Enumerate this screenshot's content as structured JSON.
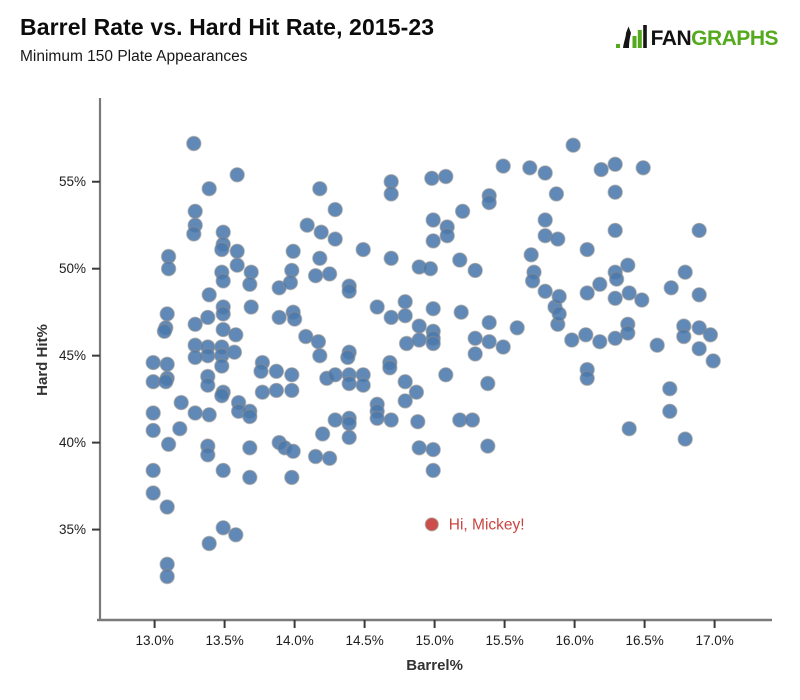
{
  "header": {
    "title": "Barrel Rate vs. Hard Hit Rate, 2015-23",
    "subtitle": "Minimum 150 Plate Appearances",
    "logo": {
      "fan": "FAN",
      "graphs": "GRAPHS",
      "fan_color": "#121212",
      "graphs_color": "#54aa1c"
    }
  },
  "chart_data": {
    "type": "scatter",
    "title": "Barrel Rate vs. Hard Hit Rate, 2015-23",
    "subtitle": "Minimum 150 Plate Appearances",
    "xlabel": "Barrel%",
    "ylabel": "Hard Hit%",
    "x_tick_labels": [
      "13.0%",
      "13.5%",
      "14.0%",
      "14.5%",
      "15.0%",
      "15.5%",
      "16.0%",
      "16.5%",
      "17.0%"
    ],
    "x_tick_values": [
      13.0,
      13.5,
      14.0,
      14.5,
      15.0,
      15.5,
      16.0,
      16.5,
      17.0
    ],
    "y_tick_labels": [
      "35%",
      "40%",
      "45%",
      "50%",
      "55%"
    ],
    "y_tick_values": [
      35,
      40,
      45,
      50,
      55
    ],
    "xlim": [
      12.61,
      17.41
    ],
    "ylim": [
      29.8,
      59.7
    ],
    "grid": false,
    "axis_color": "#7a7a7a",
    "tick_text_color": "#1c1c1c",
    "axis_label_color": "#333333",
    "series": [
      {
        "name": "qualified-hitters",
        "color": "#4a79ad",
        "points": [
          [
            13.28,
            57.2
          ],
          [
            13.59,
            55.4
          ],
          [
            13.39,
            54.6
          ],
          [
            13.29,
            53.3
          ],
          [
            13.29,
            52.5
          ],
          [
            13.28,
            52.0
          ],
          [
            13.49,
            52.1
          ],
          [
            13.49,
            51.4
          ],
          [
            13.48,
            51.1
          ],
          [
            13.59,
            51.0
          ],
          [
            13.59,
            50.2
          ],
          [
            13.1,
            50.7
          ],
          [
            13.1,
            50.0
          ],
          [
            14.18,
            54.6
          ],
          [
            14.09,
            52.5
          ],
          [
            14.19,
            52.1
          ],
          [
            13.99,
            51.0
          ],
          [
            14.18,
            50.6
          ],
          [
            13.98,
            49.9
          ],
          [
            13.69,
            49.8
          ],
          [
            15.49,
            55.9
          ],
          [
            15.68,
            55.8
          ],
          [
            15.79,
            55.5
          ],
          [
            14.98,
            55.2
          ],
          [
            15.08,
            55.3
          ],
          [
            14.69,
            55.0
          ],
          [
            14.69,
            54.3
          ],
          [
            15.39,
            54.2
          ],
          [
            15.39,
            53.8
          ],
          [
            14.29,
            53.4
          ],
          [
            15.2,
            53.3
          ],
          [
            14.99,
            52.8
          ],
          [
            15.09,
            52.4
          ],
          [
            15.09,
            51.9
          ],
          [
            14.29,
            51.7
          ],
          [
            14.99,
            51.6
          ],
          [
            14.49,
            51.1
          ],
          [
            15.79,
            52.8
          ],
          [
            15.79,
            51.9
          ],
          [
            15.87,
            54.3
          ],
          [
            15.69,
            50.8
          ],
          [
            14.69,
            50.6
          ],
          [
            15.18,
            50.5
          ],
          [
            14.89,
            50.1
          ],
          [
            14.97,
            50.0
          ],
          [
            15.29,
            49.9
          ],
          [
            15.71,
            49.8
          ],
          [
            15.7,
            49.3
          ],
          [
            15.99,
            57.1
          ],
          [
            16.19,
            55.7
          ],
          [
            16.29,
            56.0
          ],
          [
            16.49,
            55.8
          ],
          [
            16.29,
            54.4
          ],
          [
            16.29,
            52.2
          ],
          [
            16.89,
            52.2
          ],
          [
            15.88,
            51.7
          ],
          [
            16.09,
            51.1
          ],
          [
            16.38,
            50.2
          ],
          [
            16.29,
            49.8
          ],
          [
            16.79,
            49.8
          ],
          [
            13.48,
            49.8
          ],
          [
            13.49,
            49.3
          ],
          [
            13.68,
            49.1
          ],
          [
            13.89,
            48.9
          ],
          [
            13.97,
            49.2
          ],
          [
            14.15,
            49.6
          ],
          [
            14.25,
            49.7
          ],
          [
            13.09,
            47.4
          ],
          [
            13.08,
            46.6
          ],
          [
            13.07,
            46.4
          ],
          [
            13.29,
            46.8
          ],
          [
            13.38,
            47.2
          ],
          [
            13.49,
            47.8
          ],
          [
            13.49,
            47.4
          ],
          [
            13.39,
            48.5
          ],
          [
            13.69,
            47.8
          ],
          [
            13.49,
            46.5
          ],
          [
            13.58,
            46.2
          ],
          [
            13.29,
            45.6
          ],
          [
            13.38,
            45.5
          ],
          [
            13.48,
            45.5
          ],
          [
            13.38,
            45.0
          ],
          [
            13.29,
            44.9
          ],
          [
            13.48,
            45.0
          ],
          [
            13.57,
            45.2
          ],
          [
            12.99,
            44.6
          ],
          [
            13.09,
            44.5
          ],
          [
            12.99,
            43.5
          ],
          [
            13.09,
            43.7
          ],
          [
            13.08,
            43.5
          ],
          [
            13.38,
            43.8
          ],
          [
            13.38,
            43.3
          ],
          [
            13.48,
            44.4
          ],
          [
            13.77,
            44.6
          ],
          [
            13.76,
            44.1
          ],
          [
            13.87,
            44.1
          ],
          [
            13.98,
            43.9
          ],
          [
            13.87,
            43.0
          ],
          [
            13.98,
            43.0
          ],
          [
            13.77,
            42.9
          ],
          [
            13.49,
            42.9
          ],
          [
            13.48,
            42.7
          ],
          [
            14.08,
            46.1
          ],
          [
            14.17,
            45.8
          ],
          [
            14.18,
            45.0
          ],
          [
            14.23,
            43.7
          ],
          [
            13.89,
            47.2
          ],
          [
            13.99,
            47.5
          ],
          [
            14.0,
            47.1
          ],
          [
            13.19,
            42.3
          ],
          [
            12.99,
            41.7
          ],
          [
            13.29,
            41.7
          ],
          [
            13.39,
            41.6
          ],
          [
            13.6,
            42.3
          ],
          [
            13.6,
            41.8
          ],
          [
            13.68,
            41.8
          ],
          [
            13.68,
            41.5
          ],
          [
            12.99,
            40.7
          ],
          [
            13.18,
            40.8
          ],
          [
            13.1,
            39.9
          ],
          [
            13.38,
            39.8
          ],
          [
            13.38,
            39.3
          ],
          [
            13.68,
            39.7
          ],
          [
            13.89,
            40.0
          ],
          [
            13.93,
            39.7
          ],
          [
            13.99,
            39.5
          ],
          [
            14.2,
            40.5
          ],
          [
            14.15,
            39.2
          ],
          [
            14.25,
            39.1
          ],
          [
            14.39,
            49.0
          ],
          [
            14.39,
            48.7
          ],
          [
            14.59,
            47.8
          ],
          [
            14.79,
            48.1
          ],
          [
            14.69,
            47.2
          ],
          [
            14.79,
            47.3
          ],
          [
            14.99,
            47.7
          ],
          [
            15.19,
            47.5
          ],
          [
            14.89,
            46.7
          ],
          [
            14.99,
            46.4
          ],
          [
            14.99,
            46.0
          ],
          [
            14.99,
            45.7
          ],
          [
            14.8,
            45.7
          ],
          [
            14.89,
            45.9
          ],
          [
            15.29,
            46.0
          ],
          [
            15.39,
            46.9
          ],
          [
            15.39,
            45.8
          ],
          [
            15.49,
            45.5
          ],
          [
            15.59,
            46.6
          ],
          [
            15.29,
            45.1
          ],
          [
            14.39,
            45.2
          ],
          [
            14.38,
            44.9
          ],
          [
            14.29,
            43.9
          ],
          [
            14.39,
            43.9
          ],
          [
            14.49,
            43.9
          ],
          [
            14.39,
            43.4
          ],
          [
            14.49,
            43.3
          ],
          [
            14.68,
            44.6
          ],
          [
            14.68,
            44.3
          ],
          [
            15.08,
            43.9
          ],
          [
            14.79,
            43.5
          ],
          [
            14.87,
            42.9
          ],
          [
            14.79,
            42.4
          ],
          [
            15.38,
            43.4
          ],
          [
            14.59,
            42.2
          ],
          [
            14.59,
            41.8
          ],
          [
            14.59,
            41.4
          ],
          [
            14.29,
            41.3
          ],
          [
            14.39,
            41.4
          ],
          [
            14.39,
            41.1
          ],
          [
            14.69,
            41.3
          ],
          [
            14.88,
            41.2
          ],
          [
            15.18,
            41.3
          ],
          [
            15.27,
            41.3
          ],
          [
            14.39,
            40.3
          ],
          [
            14.89,
            39.7
          ],
          [
            14.99,
            39.6
          ],
          [
            15.38,
            39.8
          ],
          [
            15.79,
            48.7
          ],
          [
            15.86,
            47.8
          ],
          [
            15.88,
            46.8
          ],
          [
            16.3,
            49.4
          ],
          [
            16.18,
            49.1
          ],
          [
            16.09,
            48.6
          ],
          [
            16.29,
            48.3
          ],
          [
            16.39,
            48.6
          ],
          [
            16.48,
            48.2
          ],
          [
            16.69,
            48.9
          ],
          [
            16.89,
            48.5
          ],
          [
            15.89,
            48.4
          ],
          [
            15.89,
            47.4
          ],
          [
            16.38,
            46.8
          ],
          [
            16.38,
            46.3
          ],
          [
            15.98,
            45.9
          ],
          [
            16.08,
            46.2
          ],
          [
            16.18,
            45.8
          ],
          [
            16.29,
            46.0
          ],
          [
            16.59,
            45.6
          ],
          [
            16.78,
            46.7
          ],
          [
            16.78,
            46.1
          ],
          [
            16.89,
            46.6
          ],
          [
            16.97,
            46.2
          ],
          [
            16.89,
            45.4
          ],
          [
            16.99,
            44.7
          ],
          [
            16.09,
            44.2
          ],
          [
            16.09,
            43.7
          ],
          [
            16.68,
            43.1
          ],
          [
            16.68,
            41.8
          ],
          [
            16.39,
            40.8
          ],
          [
            16.79,
            40.2
          ],
          [
            12.99,
            38.4
          ],
          [
            12.99,
            37.1
          ],
          [
            13.09,
            36.3
          ],
          [
            13.49,
            38.4
          ],
          [
            13.68,
            38.0
          ],
          [
            13.98,
            38.0
          ],
          [
            13.49,
            35.1
          ],
          [
            13.58,
            34.7
          ],
          [
            13.39,
            34.2
          ],
          [
            13.09,
            33.0
          ],
          [
            13.09,
            32.3
          ],
          [
            14.99,
            38.4
          ]
        ]
      }
    ],
    "highlight": {
      "label": "Hi, Mickey!",
      "x": 14.98,
      "y": 35.3,
      "color": "#c94540"
    }
  }
}
